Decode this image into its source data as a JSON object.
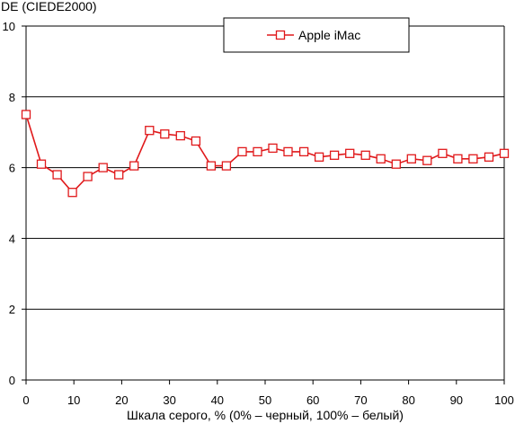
{
  "chart_data": {
    "type": "line",
    "title": "",
    "ylabel": "DE (CIEDE2000)",
    "xlabel": "Шкала серого, % (0% – черный, 100% – белый)",
    "xlim": [
      0,
      100
    ],
    "ylim": [
      0,
      10
    ],
    "x_ticks": [
      "0",
      "10",
      "20",
      "30",
      "40",
      "50",
      "60",
      "70",
      "80",
      "90",
      "100"
    ],
    "y_ticks": [
      "0",
      "2",
      "4",
      "6",
      "8",
      "10"
    ],
    "grid": "horizontal",
    "legend": "top-center",
    "colors": {
      "series": "#e0191b",
      "grid": "#000000",
      "marker_fill": "#ffffff"
    },
    "series": [
      {
        "name": "Apple iMac",
        "marker": "square",
        "x": [
          0,
          3.2,
          6.5,
          9.7,
          12.9,
          16.1,
          19.4,
          22.6,
          25.8,
          29,
          32.3,
          35.5,
          38.7,
          41.9,
          45.2,
          48.4,
          51.6,
          54.8,
          58.1,
          61.3,
          64.5,
          67.7,
          71,
          74.2,
          77.4,
          80.6,
          83.9,
          87.1,
          90.3,
          93.5,
          96.8,
          100
        ],
        "y": [
          7.5,
          6.1,
          5.8,
          5.3,
          5.75,
          6.0,
          5.8,
          6.05,
          7.05,
          6.95,
          6.9,
          6.75,
          6.05,
          6.05,
          6.45,
          6.45,
          6.55,
          6.45,
          6.45,
          6.3,
          6.35,
          6.4,
          6.35,
          6.25,
          6.1,
          6.25,
          6.2,
          6.4,
          6.25,
          6.25,
          6.3,
          6.4
        ]
      }
    ]
  }
}
